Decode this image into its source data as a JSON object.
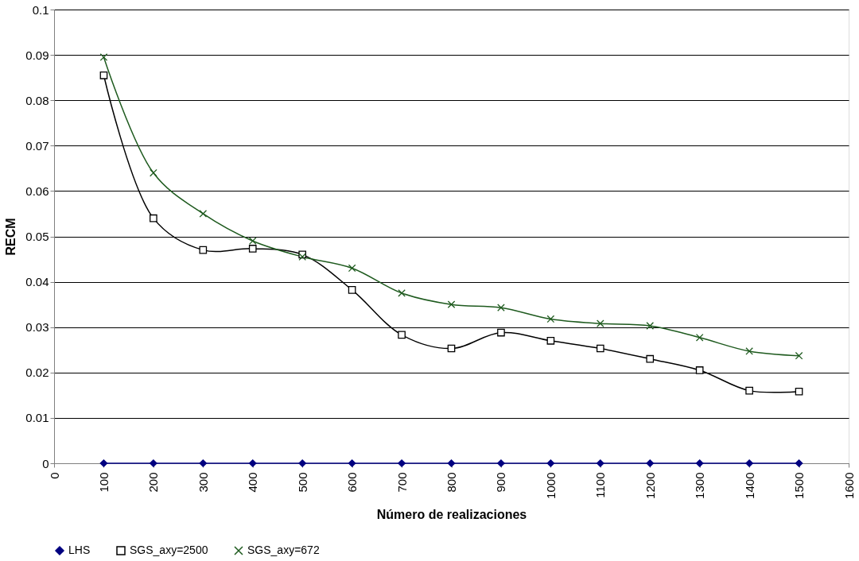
{
  "chart_data": {
    "type": "line",
    "xlabel": "Número de realizaciones",
    "ylabel": "RECM",
    "x": [
      100,
      200,
      300,
      400,
      500,
      600,
      700,
      800,
      900,
      1000,
      1100,
      1200,
      1300,
      1400,
      1500
    ],
    "series": [
      {
        "name": "LHS",
        "color": "#000080",
        "marker": "diamond",
        "values": [
          0,
          0,
          0,
          0,
          0,
          0,
          0,
          0,
          0,
          0,
          0,
          0,
          0,
          0,
          0
        ]
      },
      {
        "name": "SGS_axy=2500",
        "color": "#000000",
        "marker": "square",
        "values": [
          0.0855,
          0.054,
          0.047,
          0.0473,
          0.046,
          0.0382,
          0.0283,
          0.0253,
          0.0288,
          0.027,
          0.0253,
          0.023,
          0.0205,
          0.016,
          0.0158
        ]
      },
      {
        "name": "SGS_axy=672",
        "color": "#1e5a1e",
        "marker": "cross",
        "values": [
          0.0895,
          0.064,
          0.055,
          0.049,
          0.0455,
          0.043,
          0.0375,
          0.035,
          0.0343,
          0.0318,
          0.0308,
          0.0303,
          0.0277,
          0.0247,
          0.0237
        ]
      }
    ],
    "xlim": [
      0,
      1600
    ],
    "xticks": [
      0,
      100,
      200,
      300,
      400,
      500,
      600,
      700,
      800,
      900,
      1000,
      1100,
      1200,
      1300,
      1400,
      1500,
      1600
    ],
    "ylim": [
      0,
      0.1
    ],
    "yticks": [
      0,
      0.01,
      0.02,
      0.03,
      0.04,
      0.05,
      0.06,
      0.07,
      0.08,
      0.09,
      0.1
    ],
    "grid": "y",
    "legend": "bottom",
    "line_style": "solid"
  }
}
